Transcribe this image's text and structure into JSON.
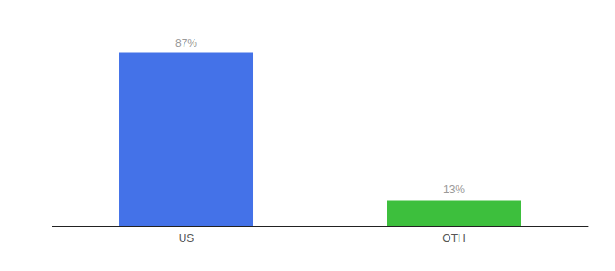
{
  "chart_data": {
    "type": "bar",
    "categories": [
      "US",
      "OTH"
    ],
    "values": [
      87,
      13
    ],
    "colors": [
      "#4472e8",
      "#3dbf3d"
    ],
    "value_labels": [
      "87%",
      "13%"
    ],
    "data_labels": true,
    "ylim": [
      0,
      100
    ],
    "tick_labels": "x",
    "grid": false
  }
}
